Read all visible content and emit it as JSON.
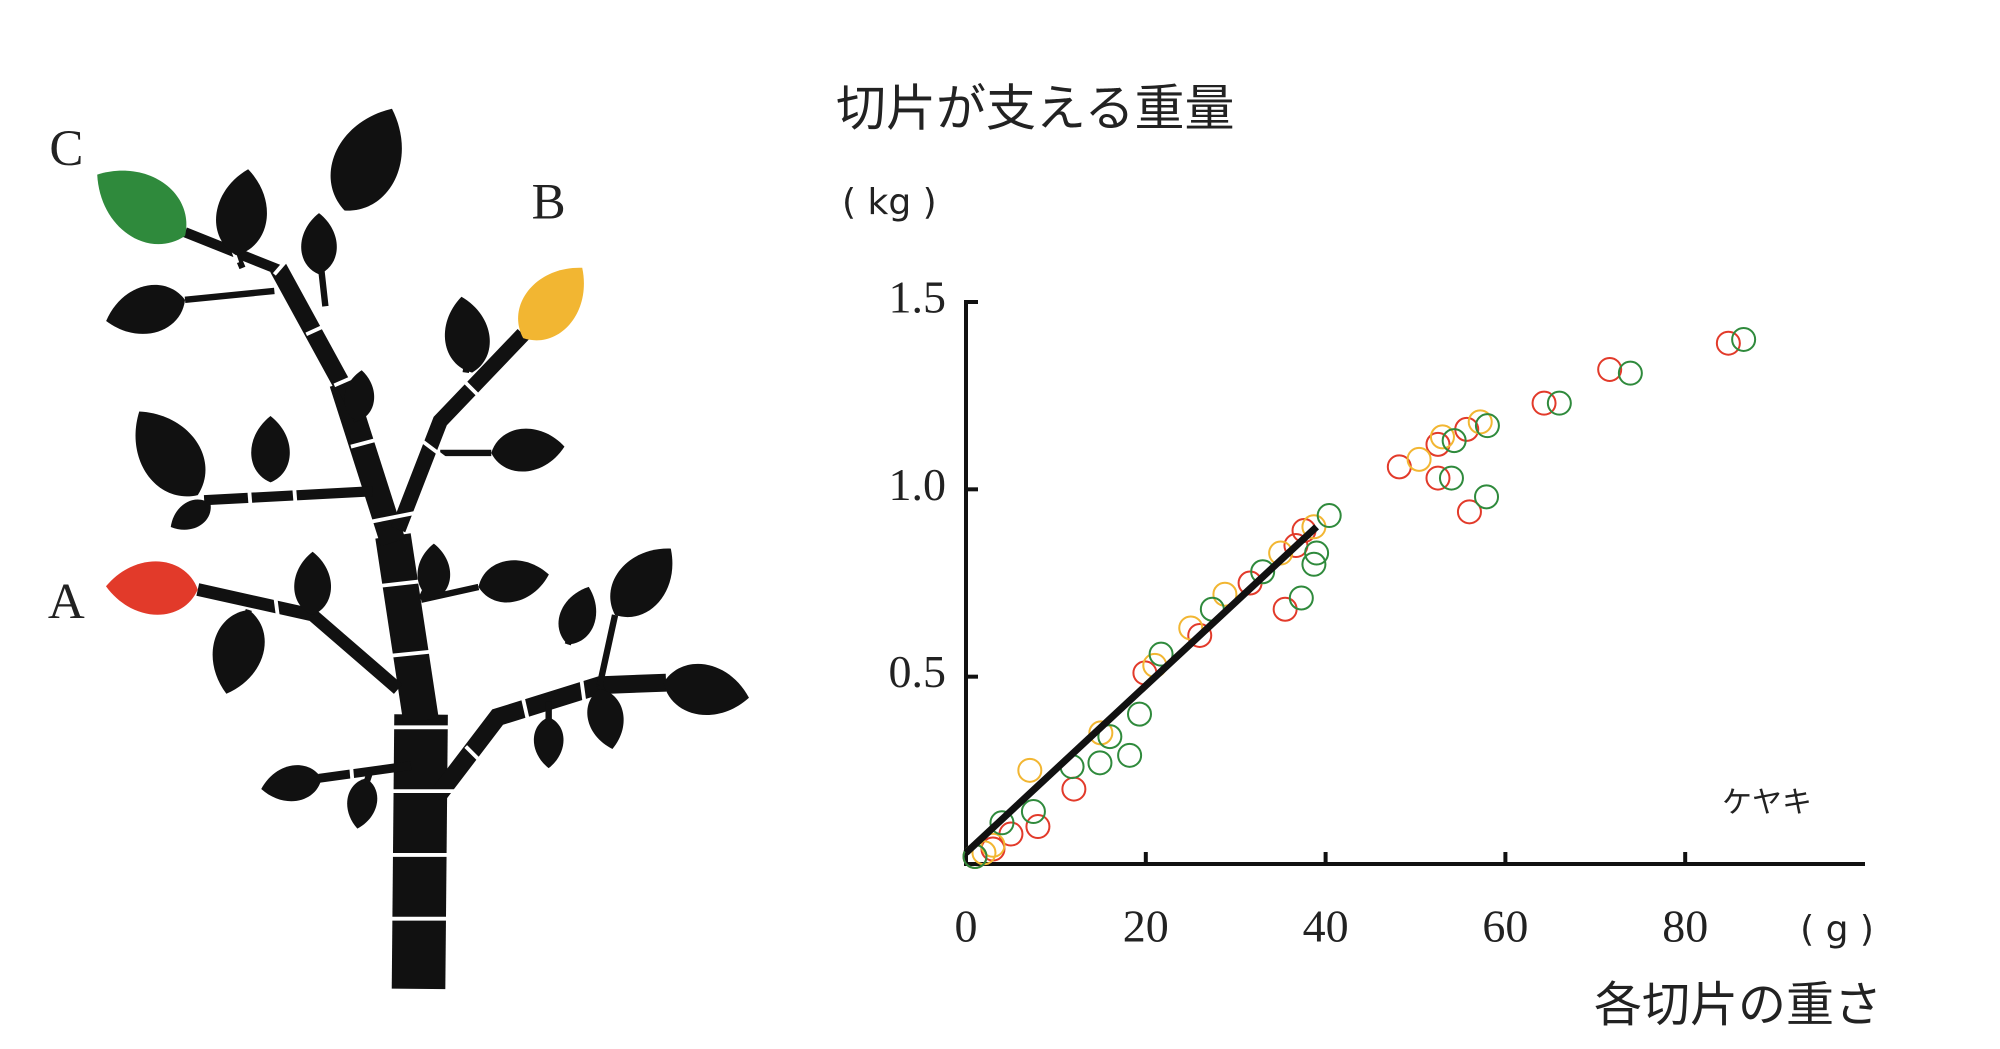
{
  "chart_data": {
    "type": "scatter",
    "title": "切片が支える重量",
    "y_unit": "( kg )",
    "x_label": "各切片の重さ",
    "x_unit": "( g )",
    "annotation": "ケヤキ",
    "xlim": [
      0,
      100
    ],
    "ylim": [
      0,
      1.5
    ],
    "xticks": [
      0,
      20,
      40,
      60,
      80
    ],
    "yticks": [
      0.5,
      {
        "value": 1,
        "label": "1.0"
      },
      1.5
    ],
    "series": [
      {
        "name": "A",
        "color": "#e23a2a",
        "x": [
          1,
          3,
          5,
          8,
          12,
          19.9,
          26,
          31.6,
          35.5,
          36.7,
          37.6,
          48.2,
          52.5,
          52.5,
          55.7,
          56,
          64.3,
          71.6,
          84.8
        ],
        "values": [
          0.02,
          0.04,
          0.08,
          0.1,
          0.2,
          0.51,
          0.61,
          0.75,
          0.68,
          0.85,
          0.89,
          1.06,
          1.12,
          1.03,
          1.16,
          0.94,
          1.23,
          1.32,
          1.39
        ]
      },
      {
        "name": "B",
        "color": "#f2b632",
        "x": [
          2,
          3,
          7.1,
          15,
          21,
          25,
          28.8,
          35,
          38.7,
          50.4,
          53,
          57.2
        ],
        "values": [
          0.03,
          0.05,
          0.25,
          0.35,
          0.53,
          0.63,
          0.72,
          0.83,
          0.9,
          1.08,
          1.14,
          1.18
        ]
      },
      {
        "name": "C",
        "color": "#2f8a3c",
        "x": [
          1,
          4,
          7.5,
          11.8,
          14.9,
          16,
          18.2,
          19.3,
          21.7,
          27.4,
          33,
          37.3,
          38.7,
          39,
          40.4,
          54,
          54.3,
          57.9,
          58,
          66,
          73.9,
          86.5
        ],
        "values": [
          0.02,
          0.11,
          0.14,
          0.26,
          0.27,
          0.34,
          0.29,
          0.4,
          0.56,
          0.68,
          0.78,
          0.71,
          0.8,
          0.83,
          0.93,
          1.03,
          1.13,
          0.98,
          1.17,
          1.23,
          1.31,
          1.4
        ]
      }
    ],
    "fit": {
      "x": [
        0,
        39
      ],
      "y": [
        0.03,
        0.9
      ]
    }
  }
}
